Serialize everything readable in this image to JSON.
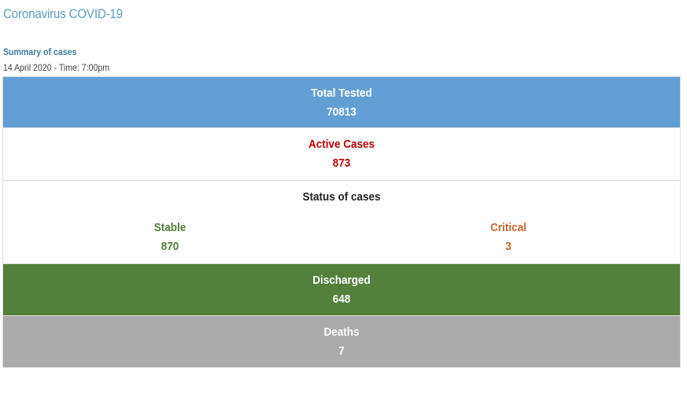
{
  "page": {
    "title": "Coronavirus COVID-19"
  },
  "summary": {
    "title": "Summary of cases",
    "date": "14 April 2020 - Time: 7:00pm"
  },
  "rows": {
    "tested": {
      "label": "Total Tested",
      "value": "70813"
    },
    "active": {
      "label": "Active Cases",
      "value": "873"
    },
    "status": {
      "label": "Status of cases",
      "stable": {
        "label": "Stable",
        "value": "870"
      },
      "critical": {
        "label": "Critical",
        "value": "3"
      }
    },
    "discharged": {
      "label": "Discharged",
      "value": "648"
    },
    "deaths": {
      "label": "Deaths",
      "value": "7"
    }
  },
  "colors": {
    "tested_bg": "#619fd4",
    "active_text": "#c00000",
    "stable_text": "#54803a",
    "critical_text": "#c8662b",
    "discharged_bg": "#54803a",
    "deaths_bg": "#aaaaaa",
    "title_text": "#5e9ec2"
  }
}
